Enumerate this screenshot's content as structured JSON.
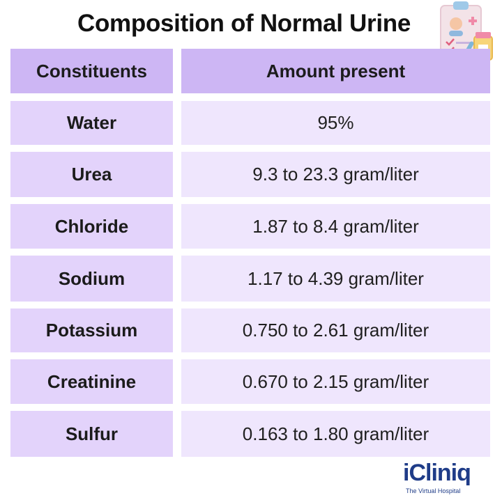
{
  "title": "Composition of Normal Urine",
  "table": {
    "headers": [
      "Constituents",
      "Amount present"
    ],
    "rows": [
      {
        "constituent": "Water",
        "amount": "95%"
      },
      {
        "constituent": "Urea",
        "amount": "9.3 to 23.3 gram/liter"
      },
      {
        "constituent": "Chloride",
        "amount": "1.87 to 8.4 gram/liter"
      },
      {
        "constituent": "Sodium",
        "amount": "1.17 to 4.39 gram/liter"
      },
      {
        "constituent": "Potassium",
        "amount": "0.750 to 2.61 gram/liter"
      },
      {
        "constituent": "Creatinine",
        "amount": "0.670 to 2.15 gram/liter"
      },
      {
        "constituent": "Sulfur",
        "amount": "0.163 to 1.80 gram/liter"
      }
    ]
  },
  "logo": {
    "name": "iCliniq",
    "tagline": "The Virtual Hospital"
  },
  "colors": {
    "header_bg": "#cdb6f4",
    "label_bg": "#e3d3fb",
    "value_bg": "#efe6fd",
    "brand": "#1f3c88"
  }
}
